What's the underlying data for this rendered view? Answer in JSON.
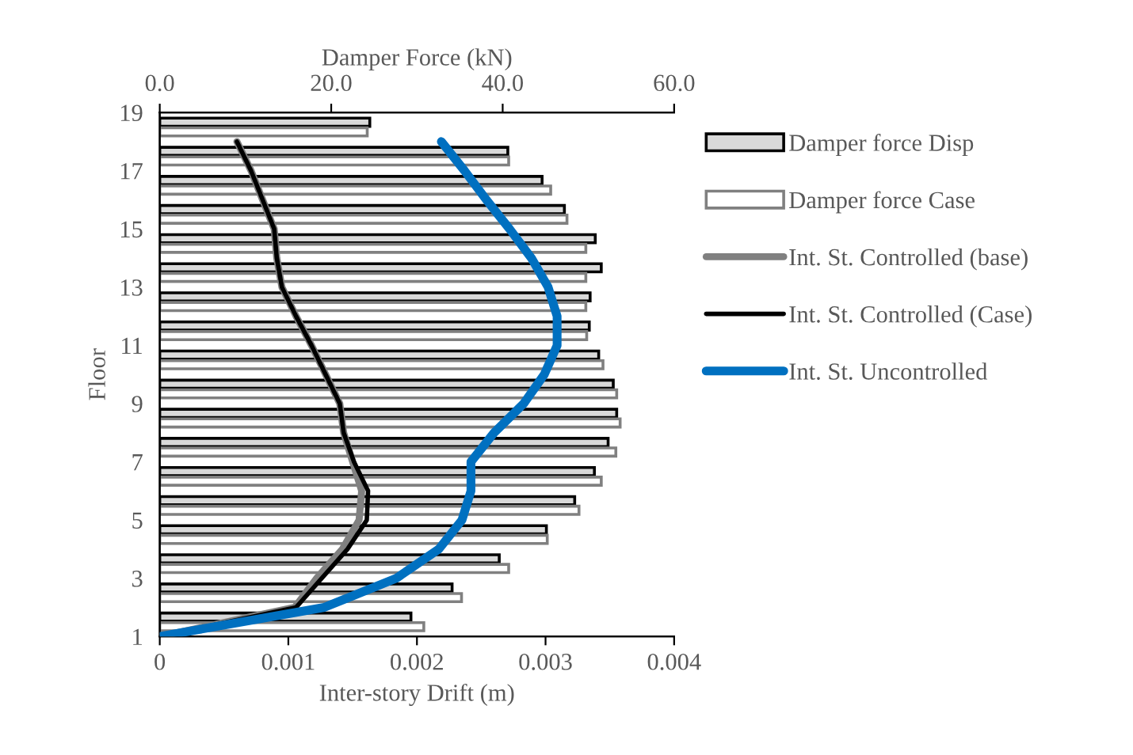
{
  "chart_data": {
    "type": "bar",
    "orientation": "horizontal",
    "xlabel": "Inter-story Drift (m)",
    "x2label": "Damper Force (kN)",
    "ylabel": "Floor",
    "xlim": [
      0,
      0.004
    ],
    "xticks": [
      0,
      0.001,
      0.002,
      0.003,
      0.004
    ],
    "x2lim": [
      0,
      60
    ],
    "x2ticks": [
      {
        "value": 0,
        "label": "0.0"
      },
      {
        "value": 20,
        "label": "20.0"
      },
      {
        "value": 40,
        "label": "40.0"
      },
      {
        "value": 60,
        "label": "60.0"
      }
    ],
    "ylim": [
      1,
      19
    ],
    "yticks": [
      1,
      3,
      5,
      7,
      9,
      11,
      13,
      15,
      17,
      19
    ],
    "legend": "right",
    "series": [
      {
        "name": "Damper force Disp",
        "axis": "x2",
        "color": "#d9d9d9",
        "x": [
          1.5,
          2.5,
          3.5,
          4.5,
          5.5,
          6.5,
          7.5,
          8.5,
          9.5,
          10.5,
          11.5,
          12.5,
          13.5,
          14.5,
          15.5,
          16.5,
          17.5,
          18.5
        ],
        "values": [
          29.3,
          34.1,
          39.6,
          45.1,
          48.4,
          50.7,
          52.3,
          53.3,
          52.9,
          51.2,
          50.1,
          50.2,
          51.5,
          50.8,
          47.2,
          44.6,
          40.6,
          24.5
        ]
      },
      {
        "name": "Damper force Case",
        "axis": "x2",
        "color": "#ffffff",
        "x": [
          1.5,
          2.5,
          3.5,
          4.5,
          5.5,
          6.5,
          7.5,
          8.5,
          9.5,
          10.5,
          11.5,
          12.5,
          13.5,
          14.5,
          15.5,
          16.5,
          17.5,
          18.5
        ],
        "values": [
          30.8,
          35.2,
          40.7,
          45.2,
          48.9,
          51.5,
          53.2,
          53.7,
          53.3,
          51.7,
          49.8,
          49.7,
          49.7,
          49.7,
          47.5,
          45.6,
          40.7,
          24.2
        ]
      },
      {
        "name": "Int. St. Controlled (base)",
        "type": "line",
        "color": "#808080",
        "x": [
          1,
          2,
          3,
          4,
          5,
          6,
          7,
          8,
          9,
          10,
          11,
          12,
          13,
          14,
          15,
          16,
          17,
          18
        ],
        "values": [
          0,
          0.00105,
          0.00122,
          0.00142,
          0.00155,
          0.00157,
          0.0015,
          0.00143,
          0.0014,
          0.00129,
          0.00118,
          0.00106,
          0.00095,
          0.00091,
          0.00089,
          0.0008,
          0.00071,
          0.0006
        ]
      },
      {
        "name": "Int. St. Controlled (Case)",
        "type": "line",
        "color": "#000000",
        "x": [
          1,
          2,
          3,
          4,
          5,
          6,
          7,
          8,
          9,
          10,
          11,
          12,
          13,
          14,
          15,
          16,
          17,
          18
        ],
        "values": [
          0,
          0.00106,
          0.00126,
          0.00146,
          0.00161,
          0.00162,
          0.00151,
          0.00143,
          0.0014,
          0.00129,
          0.00118,
          0.00106,
          0.00095,
          0.00091,
          0.00089,
          0.0008,
          0.00071,
          0.0006
        ]
      },
      {
        "name": "Int. St. Uncontrolled",
        "type": "line",
        "color": "#0070c0",
        "x": [
          1,
          2,
          3,
          4,
          5,
          6,
          7,
          8,
          9,
          10,
          11,
          12,
          13,
          14,
          15,
          16,
          17,
          18
        ],
        "values": [
          0,
          0.00128,
          0.00184,
          0.00217,
          0.00235,
          0.00242,
          0.00242,
          0.0026,
          0.00283,
          0.00299,
          0.00309,
          0.00309,
          0.00302,
          0.00289,
          0.00272,
          0.00254,
          0.00237,
          0.00219
        ]
      }
    ]
  }
}
